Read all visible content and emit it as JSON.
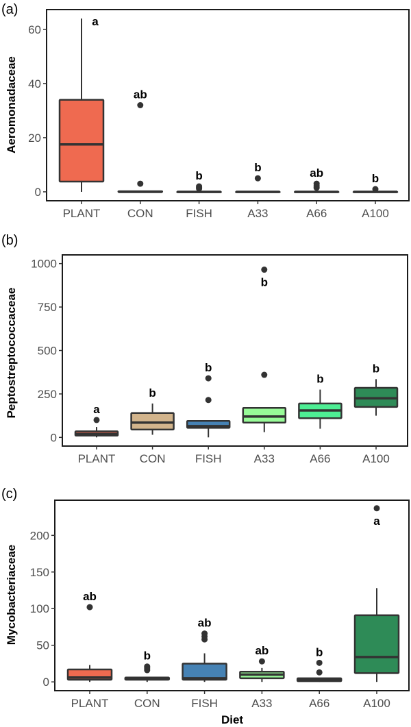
{
  "figure": {
    "xlabel": "Diet"
  },
  "chart_data": [
    {
      "type": "box",
      "panel": "(a)",
      "title": "",
      "xlabel": "",
      "ylabel": "Aeromonadaceae",
      "categories": [
        "PLANT",
        "CON",
        "FISH",
        "A33",
        "A66",
        "A100"
      ],
      "ylim": [
        -3.3,
        67.3
      ],
      "yticks": [
        0,
        20,
        40,
        60
      ],
      "grid": false,
      "boxes": [
        {
          "category": "PLANT",
          "color": "#EF6A50",
          "whisker_low": 0,
          "q1": 3.8,
          "median": 17.5,
          "q3": 34,
          "whisker_high": 64,
          "outliers": [],
          "letter": "a"
        },
        {
          "category": "CON",
          "color": "#D2B48C",
          "whisker_low": 0,
          "q1": 0,
          "median": 0,
          "q3": 0.2,
          "whisker_high": 0.5,
          "outliers": [
            3,
            32
          ],
          "letter": "ab"
        },
        {
          "category": "FISH",
          "color": "#4682B4",
          "whisker_low": 0,
          "q1": 0,
          "median": 0,
          "q3": 0,
          "whisker_high": 0,
          "outliers": [
            1.2,
            1.6,
            2
          ],
          "letter": "b"
        },
        {
          "category": "A33",
          "color": "#98FB98",
          "whisker_low": 0,
          "q1": 0,
          "median": 0,
          "q3": 0,
          "whisker_high": 0,
          "outliers": [
            5
          ],
          "letter": "b"
        },
        {
          "category": "A66",
          "color": "#4EEE94",
          "whisker_low": 0,
          "q1": 0,
          "median": 0,
          "q3": 0,
          "whisker_high": 0,
          "outliers": [
            1.5,
            2.2,
            3
          ],
          "letter": "ab"
        },
        {
          "category": "A100",
          "color": "#2E8B57",
          "whisker_low": 0,
          "q1": 0,
          "median": 0,
          "q3": 0,
          "whisker_high": 0,
          "outliers": [
            1
          ],
          "letter": "b"
        }
      ]
    },
    {
      "type": "box",
      "panel": "(b)",
      "title": "",
      "xlabel": "",
      "ylabel": "Peptostreptococcaceae",
      "categories": [
        "PLANT",
        "CON",
        "FISH",
        "A33",
        "A66",
        "A100"
      ],
      "ylim": [
        -50,
        1050
      ],
      "yticks": [
        0,
        250,
        500,
        750,
        1000
      ],
      "grid": false,
      "boxes": [
        {
          "category": "PLANT",
          "color": "#EF6A50",
          "whisker_low": 0,
          "q1": 10,
          "median": 20,
          "q3": 35,
          "whisker_high": 60,
          "outliers": [
            100
          ],
          "letter": "a"
        },
        {
          "category": "CON",
          "color": "#D2B48C",
          "whisker_low": 15,
          "q1": 45,
          "median": 85,
          "q3": 140,
          "whisker_high": 195,
          "outliers": [],
          "letter": "b"
        },
        {
          "category": "FISH",
          "color": "#4682B4",
          "whisker_low": 0,
          "q1": 55,
          "median": 65,
          "q3": 95,
          "whisker_high": 95,
          "outliers": [
            215,
            340
          ],
          "letter": "b"
        },
        {
          "category": "A33",
          "color": "#98FB98",
          "whisker_low": 30,
          "q1": 85,
          "median": 120,
          "q3": 170,
          "whisker_high": 170,
          "outliers": [
            360,
            965
          ],
          "letter": "b"
        },
        {
          "category": "A66",
          "color": "#4EEE94",
          "whisker_low": 50,
          "q1": 110,
          "median": 155,
          "q3": 195,
          "whisker_high": 275,
          "outliers": [],
          "letter": "b"
        },
        {
          "category": "A100",
          "color": "#2E8B57",
          "whisker_low": 125,
          "q1": 175,
          "median": 225,
          "q3": 285,
          "whisker_high": 335,
          "outliers": [],
          "letter": "b"
        }
      ]
    },
    {
      "type": "box",
      "panel": "(c)",
      "title": "",
      "xlabel": "Diet",
      "ylabel": "Mycobacteriaceae",
      "categories": [
        "PLANT",
        "CON",
        "FISH",
        "A33",
        "A66",
        "A100"
      ],
      "ylim": [
        -12,
        248
      ],
      "yticks": [
        0,
        50,
        100,
        150,
        200
      ],
      "grid": false,
      "boxes": [
        {
          "category": "PLANT",
          "color": "#EF6A50",
          "whisker_low": 0,
          "q1": 3,
          "median": 6,
          "q3": 17,
          "whisker_high": 23,
          "outliers": [
            102
          ],
          "letter": "ab"
        },
        {
          "category": "CON",
          "color": "#D2B48C",
          "whisker_low": 0,
          "q1": 3,
          "median": 5,
          "q3": 6,
          "whisker_high": 6,
          "outliers": [
            16,
            19,
            21
          ],
          "letter": "b"
        },
        {
          "category": "FISH",
          "color": "#4682B4",
          "whisker_low": 0,
          "q1": 3,
          "median": 5,
          "q3": 25,
          "whisker_high": 39,
          "outliers": [
            58,
            62,
            66
          ],
          "letter": "ab"
        },
        {
          "category": "A33",
          "color": "#98FB98",
          "whisker_low": 0,
          "q1": 5,
          "median": 10,
          "q3": 14,
          "whisker_high": 19,
          "outliers": [
            28
          ],
          "letter": "ab"
        },
        {
          "category": "A66",
          "color": "#4EEE94",
          "whisker_low": 0,
          "q1": 1,
          "median": 3,
          "q3": 5,
          "whisker_high": 5,
          "outliers": [
            13,
            26
          ],
          "letter": "b"
        },
        {
          "category": "A100",
          "color": "#2E8B57",
          "whisker_low": 0,
          "q1": 12,
          "median": 34,
          "q3": 91,
          "whisker_high": 128,
          "outliers": [
            237
          ],
          "letter": "a"
        }
      ]
    }
  ]
}
